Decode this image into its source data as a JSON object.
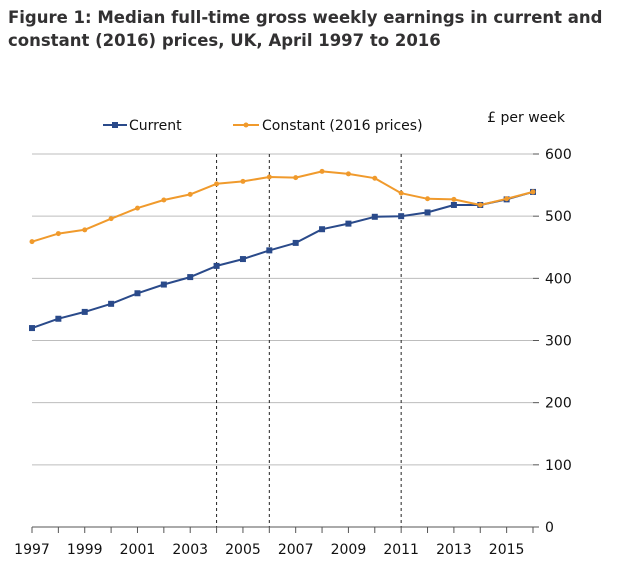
{
  "chart_data": {
    "type": "line",
    "title": "Figure 1: Median full-time gross weekly earnings in current and constant (2016) prices, UK, April 1997 to 2016",
    "ylabel": "£ per week",
    "xlabel": "",
    "ylim": [
      0,
      600
    ],
    "xlim": [
      1997,
      2016
    ],
    "y_ticks": [
      0,
      100,
      200,
      300,
      400,
      500,
      600
    ],
    "y_tick_labels": [
      "0",
      "100",
      "200",
      "300",
      "400",
      "500",
      "600"
    ],
    "x_ticks": [
      1997,
      1999,
      2001,
      2003,
      2005,
      2007,
      2009,
      2011,
      2013,
      2015
    ],
    "x_tick_labels": [
      "1997",
      "1999",
      "2001",
      "2003",
      "2005",
      "2007",
      "2009",
      "2011",
      "2013",
      "2015"
    ],
    "grid": true,
    "legend_position": "top-left",
    "vertical_markers": [
      2004,
      2006,
      2011
    ],
    "x": [
      1997,
      1998,
      1999,
      2000,
      2001,
      2002,
      2003,
      2004,
      2005,
      2006,
      2007,
      2008,
      2009,
      2010,
      2011,
      2012,
      2013,
      2014,
      2015,
      2016
    ],
    "series": [
      {
        "name": "Current",
        "color": "#2a4a8a",
        "marker": "square",
        "values": [
          320,
          335,
          346,
          359,
          376,
          390,
          402,
          420,
          431,
          445,
          457,
          479,
          488,
          499,
          500,
          506,
          518,
          518,
          527,
          539
        ]
      },
      {
        "name": "Constant (2016 prices)",
        "color": "#f09a2c",
        "marker": "dot",
        "values": [
          459,
          472,
          478,
          496,
          513,
          526,
          535,
          552,
          556,
          563,
          562,
          572,
          568,
          561,
          537,
          528,
          527,
          518,
          528,
          539
        ]
      }
    ]
  }
}
